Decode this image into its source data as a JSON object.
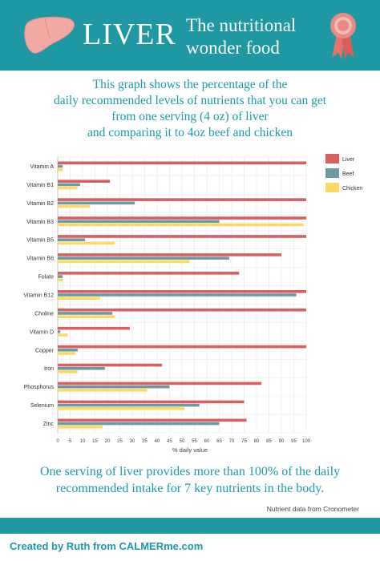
{
  "header": {
    "title": "LIVER",
    "subtitle": "The nutritional wonder food",
    "liver_icon": "liver-icon",
    "ribbon_icon": "award-ribbon-icon"
  },
  "intro": {
    "lines": [
      "This graph shows the percentage of the",
      "daily recommended levels of nutrients that you can get",
      "from one serving (4 oz) of liver",
      "and comparing it to 4oz beef and chicken"
    ]
  },
  "chart_data": {
    "type": "bar",
    "orientation": "horizontal",
    "categories": [
      "Vitamin A",
      "Vitamin B1",
      "Vitamin B2",
      "Vitamin B3",
      "Vitamin B5",
      "Vitamin B6",
      "Folate",
      "Vitamin B12",
      "Choline",
      "Vitamin D",
      "Copper",
      "Iron",
      "Phosphorus",
      "Selenium",
      "Zinc"
    ],
    "series": [
      {
        "name": "Liver",
        "color": "#d95f63",
        "values": [
          100,
          21,
          100,
          100,
          100,
          90,
          73,
          100,
          100,
          29,
          100,
          42,
          82,
          75,
          76
        ]
      },
      {
        "name": "Beef",
        "color": "#6d9aa1",
        "values": [
          2,
          9,
          31,
          65,
          11,
          69,
          2,
          96,
          22,
          1,
          8,
          19,
          45,
          57,
          65
        ]
      },
      {
        "name": "Chicken",
        "color": "#fbd967",
        "values": [
          2,
          8,
          13,
          99,
          23,
          53,
          2,
          17,
          23,
          4,
          7,
          8,
          36,
          51,
          18
        ]
      }
    ],
    "xlabel": "% daily value",
    "xlim": [
      0,
      100
    ],
    "xticks": [
      0,
      5,
      10,
      15,
      20,
      25,
      30,
      35,
      40,
      45,
      50,
      55,
      60,
      65,
      70,
      75,
      80,
      85,
      90,
      95,
      100
    ],
    "grid": true,
    "legend": "top-right"
  },
  "conclusion": {
    "lines": [
      "One serving of liver provides more than 100% of the daily",
      "recommended intake for 7 key nutrients in the body."
    ]
  },
  "source": "Nutrient data from Cronometer",
  "credit": "Created by Ruth from CALMERme.com"
}
